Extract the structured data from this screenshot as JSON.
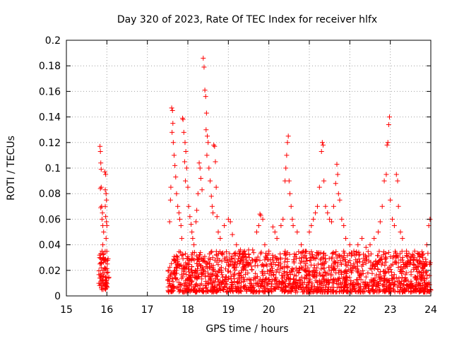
{
  "chart_data": {
    "type": "scatter",
    "title": "Day 320 of 2023, Rate Of TEC Index for receiver hlfx",
    "xlabel": "GPS time / hours",
    "ylabel": "ROTI / TECUs",
    "xlim": [
      15,
      24
    ],
    "ylim": [
      0,
      0.2
    ],
    "xticks": [
      "15",
      "16",
      "17",
      "18",
      "19",
      "20",
      "21",
      "22",
      "23",
      "24"
    ],
    "yticks": [
      "0",
      "0.02",
      "0.04",
      "0.06",
      "0.08",
      "0.1",
      "0.12",
      "0.14",
      "0.16",
      "0.18",
      "0.2"
    ],
    "grid": true,
    "marker": "plus",
    "marker_color": "#ff0000",
    "frame_color": "#000000",
    "grid_color": "#a0a0a0",
    "series": [
      {
        "points": [
          [
            15.83,
            0.117
          ],
          [
            15.84,
            0.113
          ],
          [
            15.85,
            0.104
          ],
          [
            15.86,
            0.099
          ],
          [
            15.84,
            0.084
          ],
          [
            15.86,
            0.085
          ],
          [
            15.87,
            0.07
          ],
          [
            15.85,
            0.069
          ],
          [
            15.89,
            0.065
          ],
          [
            15.88,
            0.06
          ],
          [
            15.9,
            0.055
          ],
          [
            15.92,
            0.05
          ],
          [
            15.95,
            0.097
          ],
          [
            15.97,
            0.095
          ],
          [
            15.96,
            0.083
          ],
          [
            15.98,
            0.08
          ],
          [
            15.99,
            0.075
          ],
          [
            15.96,
            0.07
          ],
          [
            15.97,
            0.062
          ],
          [
            15.99,
            0.058
          ],
          [
            16.0,
            0.055
          ],
          [
            15.98,
            0.045
          ],
          [
            15.9,
            0.04
          ],
          [
            15.88,
            0.035
          ],
          [
            15.85,
            0.033
          ],
          [
            15.92,
            0.03
          ],
          [
            15.94,
            0.028
          ],
          [
            15.83,
            0.025
          ],
          [
            15.86,
            0.022
          ],
          [
            15.9,
            0.02
          ],
          [
            15.93,
            0.018
          ],
          [
            15.96,
            0.015
          ],
          [
            15.84,
            0.014
          ],
          [
            15.87,
            0.012
          ],
          [
            15.91,
            0.01
          ],
          [
            15.95,
            0.008
          ],
          [
            15.99,
            0.012
          ],
          [
            16.0,
            0.018
          ],
          [
            16.01,
            0.025
          ],
          [
            15.82,
            0.03
          ],
          [
            17.55,
            0.058
          ],
          [
            17.57,
            0.075
          ],
          [
            17.58,
            0.085
          ],
          [
            17.6,
            0.147
          ],
          [
            17.62,
            0.145
          ],
          [
            17.63,
            0.135
          ],
          [
            17.61,
            0.128
          ],
          [
            17.64,
            0.12
          ],
          [
            17.66,
            0.11
          ],
          [
            17.68,
            0.102
          ],
          [
            17.7,
            0.093
          ],
          [
            17.72,
            0.08
          ],
          [
            17.75,
            0.07
          ],
          [
            17.78,
            0.065
          ],
          [
            17.8,
            0.06
          ],
          [
            17.83,
            0.055
          ],
          [
            17.85,
            0.045
          ],
          [
            17.87,
            0.139
          ],
          [
            17.88,
            0.138
          ],
          [
            17.9,
            0.128
          ],
          [
            17.93,
            0.12
          ],
          [
            17.95,
            0.113
          ],
          [
            17.92,
            0.105
          ],
          [
            17.97,
            0.1
          ],
          [
            17.94,
            0.09
          ],
          [
            18.0,
            0.085
          ],
          [
            18.02,
            0.07
          ],
          [
            18.05,
            0.062
          ],
          [
            18.08,
            0.056
          ],
          [
            18.1,
            0.05
          ],
          [
            18.12,
            0.045
          ],
          [
            18.15,
            0.04
          ],
          [
            18.2,
            0.058
          ],
          [
            18.22,
            0.067
          ],
          [
            18.25,
            0.08
          ],
          [
            18.28,
            0.104
          ],
          [
            18.3,
            0.1
          ],
          [
            18.32,
            0.092
          ],
          [
            18.35,
            0.083
          ],
          [
            18.38,
            0.186
          ],
          [
            18.4,
            0.179
          ],
          [
            18.42,
            0.161
          ],
          [
            18.44,
            0.156
          ],
          [
            18.46,
            0.143
          ],
          [
            18.45,
            0.13
          ],
          [
            18.48,
            0.125
          ],
          [
            18.5,
            0.12
          ],
          [
            18.47,
            0.11
          ],
          [
            18.52,
            0.1
          ],
          [
            18.55,
            0.09
          ],
          [
            18.58,
            0.078
          ],
          [
            18.6,
            0.07
          ],
          [
            18.62,
            0.065
          ],
          [
            18.64,
            0.118
          ],
          [
            18.66,
            0.117
          ],
          [
            18.68,
            0.105
          ],
          [
            18.7,
            0.085
          ],
          [
            18.72,
            0.062
          ],
          [
            18.75,
            0.05
          ],
          [
            18.8,
            0.045
          ],
          [
            18.9,
            0.055
          ],
          [
            19.0,
            0.06
          ],
          [
            19.05,
            0.058
          ],
          [
            19.1,
            0.048
          ],
          [
            19.2,
            0.04
          ],
          [
            19.3,
            0.036
          ],
          [
            19.4,
            0.035
          ],
          [
            19.5,
            0.036
          ],
          [
            19.6,
            0.036
          ],
          [
            19.7,
            0.05
          ],
          [
            19.75,
            0.055
          ],
          [
            19.78,
            0.064
          ],
          [
            19.8,
            0.063
          ],
          [
            19.85,
            0.06
          ],
          [
            19.9,
            0.04
          ],
          [
            20.0,
            0.035
          ],
          [
            20.1,
            0.054
          ],
          [
            20.15,
            0.05
          ],
          [
            20.2,
            0.045
          ],
          [
            20.3,
            0.055
          ],
          [
            20.35,
            0.06
          ],
          [
            20.4,
            0.09
          ],
          [
            20.42,
            0.1
          ],
          [
            20.44,
            0.11
          ],
          [
            20.46,
            0.12
          ],
          [
            20.48,
            0.125
          ],
          [
            20.5,
            0.09
          ],
          [
            20.52,
            0.08
          ],
          [
            20.55,
            0.07
          ],
          [
            20.58,
            0.06
          ],
          [
            20.6,
            0.055
          ],
          [
            20.7,
            0.05
          ],
          [
            20.8,
            0.04
          ],
          [
            20.9,
            0.035
          ],
          [
            21.0,
            0.05
          ],
          [
            21.05,
            0.055
          ],
          [
            21.1,
            0.06
          ],
          [
            21.15,
            0.065
          ],
          [
            21.2,
            0.07
          ],
          [
            21.25,
            0.085
          ],
          [
            21.3,
            0.113
          ],
          [
            21.32,
            0.12
          ],
          [
            21.34,
            0.118
          ],
          [
            21.36,
            0.09
          ],
          [
            21.4,
            0.07
          ],
          [
            21.45,
            0.065
          ],
          [
            21.5,
            0.06
          ],
          [
            21.55,
            0.058
          ],
          [
            21.6,
            0.07
          ],
          [
            21.65,
            0.088
          ],
          [
            21.68,
            0.103
          ],
          [
            21.7,
            0.095
          ],
          [
            21.72,
            0.08
          ],
          [
            21.75,
            0.075
          ],
          [
            21.8,
            0.06
          ],
          [
            21.85,
            0.055
          ],
          [
            21.9,
            0.045
          ],
          [
            22.0,
            0.04
          ],
          [
            22.1,
            0.035
          ],
          [
            22.2,
            0.04
          ],
          [
            22.3,
            0.045
          ],
          [
            22.4,
            0.038
          ],
          [
            22.5,
            0.04
          ],
          [
            22.6,
            0.045
          ],
          [
            22.7,
            0.05
          ],
          [
            22.75,
            0.058
          ],
          [
            22.8,
            0.07
          ],
          [
            22.85,
            0.09
          ],
          [
            22.9,
            0.095
          ],
          [
            22.92,
            0.118
          ],
          [
            22.94,
            0.12
          ],
          [
            22.96,
            0.134
          ],
          [
            22.98,
            0.14
          ],
          [
            23.0,
            0.075
          ],
          [
            23.05,
            0.06
          ],
          [
            23.1,
            0.055
          ],
          [
            23.15,
            0.095
          ],
          [
            23.18,
            0.09
          ],
          [
            23.2,
            0.07
          ],
          [
            23.25,
            0.05
          ],
          [
            23.3,
            0.045
          ],
          [
            23.4,
            0.035
          ],
          [
            23.5,
            0.03
          ],
          [
            23.6,
            0.035
          ],
          [
            23.7,
            0.033
          ],
          [
            23.8,
            0.03
          ],
          [
            23.9,
            0.04
          ],
          [
            23.95,
            0.055
          ],
          [
            23.98,
            0.06
          ]
        ]
      }
    ],
    "dense_bands": [
      {
        "x": [
          15.8,
          16.05
        ],
        "y": [
          0.005,
          0.035
        ]
      },
      {
        "x": [
          17.5,
          24.0
        ],
        "y": [
          0.003,
          0.035
        ]
      }
    ]
  }
}
